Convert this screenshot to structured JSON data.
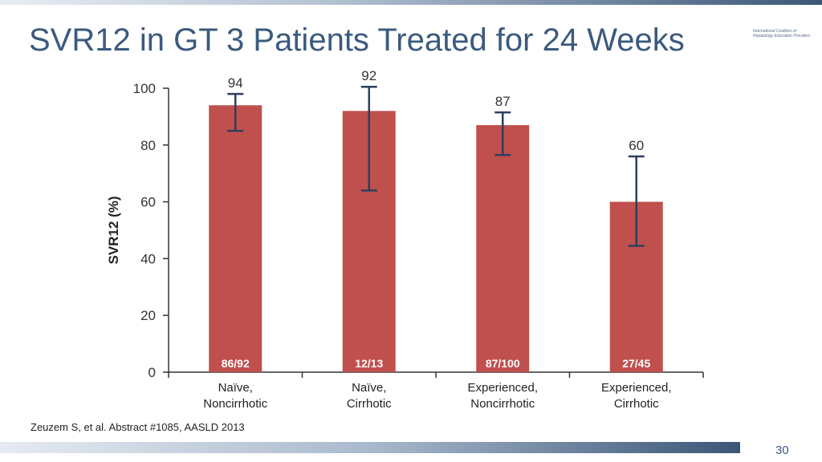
{
  "slide": {
    "title": "SVR12 in GT 3 Patients Treated for 24 Weeks",
    "logo_lines": [
      "International Coalition of",
      "Hepatology Education Providers"
    ],
    "citation": "Zeuzem S, et al. Abstract #1085, AASLD 2013",
    "page_number": "30"
  },
  "colors": {
    "bar": "#c0504d",
    "error_bar": "#2e3f5e",
    "title": "#3b5a7e",
    "axis": "#333333"
  },
  "chart_data": {
    "type": "bar",
    "title": "",
    "xlabel": "",
    "ylabel": "SVR12 (%)",
    "ylim": [
      0,
      100
    ],
    "yticks": [
      0,
      20,
      40,
      60,
      80,
      100
    ],
    "categories": [
      [
        "Naïve,",
        "Noncirrhotic"
      ],
      [
        "Naïve,",
        "Cirrhotic"
      ],
      [
        "Experienced,",
        "Noncirrhotic"
      ],
      [
        "Experienced,",
        "Cirrhotic"
      ]
    ],
    "values": [
      94,
      92,
      87,
      60
    ],
    "value_labels": [
      "94",
      "92",
      "87",
      "60"
    ],
    "error_low": [
      85,
      64,
      76.5,
      44.5
    ],
    "error_high": [
      98,
      100.5,
      91.5,
      76
    ],
    "counts": [
      "86/92",
      "12/13",
      "87/100",
      "27/45"
    ],
    "grid": false,
    "legend": "none"
  }
}
